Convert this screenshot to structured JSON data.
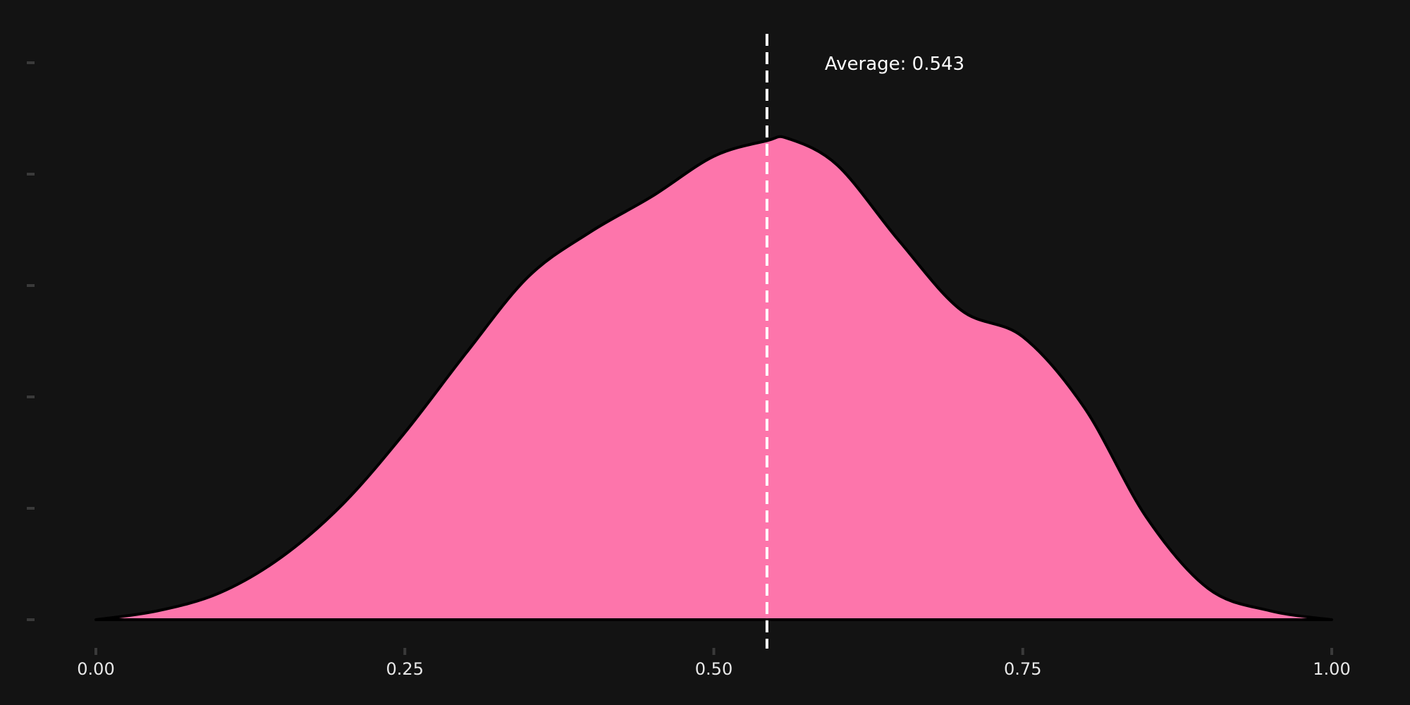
{
  "chart_data": {
    "type": "area",
    "title": "",
    "xlabel": "",
    "ylabel": "",
    "xlim": [
      0,
      1
    ],
    "ylim": [
      0,
      2.2
    ],
    "x_ticks": [
      0.0,
      0.25,
      0.5,
      0.75,
      1.0
    ],
    "x_tick_labels": [
      "0.00",
      "0.25",
      "0.50",
      "0.75",
      "1.00"
    ],
    "y_ticks": [
      0,
      0.5,
      1.0,
      1.5,
      2.0,
      2.5
    ],
    "y_tick_labels": [
      "",
      "",
      "",
      "",
      "",
      ""
    ],
    "grid": false,
    "series": [
      {
        "x": [
          0.0,
          0.05,
          0.1,
          0.15,
          0.2,
          0.25,
          0.3,
          0.35,
          0.4,
          0.45,
          0.5,
          0.543,
          0.56,
          0.6,
          0.65,
          0.7,
          0.75,
          0.8,
          0.85,
          0.9,
          0.95,
          1.0
        ],
        "y": [
          0.0,
          0.04,
          0.12,
          0.28,
          0.52,
          0.84,
          1.2,
          1.54,
          1.74,
          1.9,
          2.08,
          2.15,
          2.16,
          2.04,
          1.7,
          1.39,
          1.27,
          0.95,
          0.46,
          0.14,
          0.04,
          0.0
        ]
      }
    ],
    "mean": 0.543,
    "annotation": "Average: 0.543",
    "colors": {
      "background": "#131313",
      "fill": "#fd75ab",
      "outline": "#000000",
      "mean_line": "#ffffff",
      "tick": "#3a3a3a",
      "text": "#e8e8e8"
    }
  }
}
